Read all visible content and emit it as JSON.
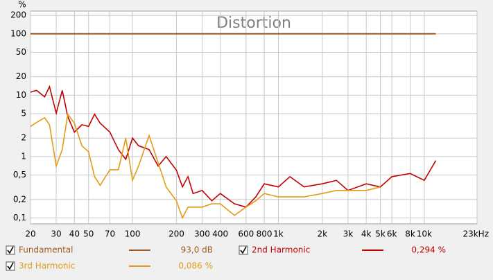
{
  "chart_data": {
    "type": "line",
    "title": "Distortion",
    "y_label": "%",
    "log_x": true,
    "log_y": true,
    "grid": true,
    "xlim": [
      20,
      23000
    ],
    "ylim": [
      0.08,
      235
    ],
    "xticks": [
      20,
      30,
      40,
      50,
      70,
      100,
      200,
      300,
      400,
      600,
      800,
      {
        "value": 1000,
        "label": "1k"
      },
      {
        "value": 2000,
        "label": "2k"
      },
      {
        "value": 3000,
        "label": "3k"
      },
      {
        "value": 4000,
        "label": "4k"
      },
      {
        "value": 5000,
        "label": "5k"
      },
      {
        "value": 6000,
        "label": "6k"
      },
      {
        "value": 8000,
        "label": "8k"
      },
      {
        "value": 10000,
        "label": "10k"
      },
      {
        "value": 23000,
        "label": "23kHz"
      }
    ],
    "yticks": [
      {
        "value": 0.1,
        "label": "0,1"
      },
      {
        "value": 0.2,
        "label": "0,2"
      },
      {
        "value": 0.5,
        "label": "0,5"
      },
      1,
      2,
      5,
      10,
      20,
      50,
      100,
      200
    ],
    "x": [
      20,
      22,
      25,
      27,
      30,
      33,
      36,
      40,
      45,
      50,
      55,
      60,
      70,
      80,
      90,
      100,
      110,
      130,
      150,
      170,
      200,
      220,
      240,
      260,
      300,
      350,
      400,
      500,
      600,
      700,
      800,
      1000,
      1200,
      1500,
      2000,
      2500,
      3000,
      4000,
      5000,
      6000,
      8000,
      10000,
      12000
    ],
    "series": [
      {
        "name": "Fundamental",
        "color": "#9c5a1e",
        "readout": "93,0 dB",
        "values": [
          100,
          100,
          100,
          100,
          100,
          100,
          100,
          100,
          100,
          100,
          100,
          100,
          100,
          100,
          100,
          100,
          100,
          100,
          100,
          100,
          100,
          100,
          100,
          100,
          100,
          100,
          100,
          100,
          100,
          100,
          100,
          100,
          100,
          100,
          100,
          100,
          100,
          100,
          100,
          100,
          100,
          100,
          100
        ]
      },
      {
        "name": "2nd Harmonic",
        "color": "#c00000",
        "readout": "0,294 %",
        "values": [
          11.2,
          12,
          9.4,
          13.8,
          5.1,
          12,
          4.5,
          2.5,
          3.3,
          3.1,
          4.9,
          3.5,
          2.5,
          1.3,
          0.9,
          2,
          1.5,
          1.3,
          0.7,
          1.0,
          0.6,
          0.32,
          0.47,
          0.25,
          0.28,
          0.19,
          0.25,
          0.17,
          0.15,
          0.22,
          0.36,
          0.32,
          0.47,
          0.32,
          0.36,
          0.41,
          0.28,
          0.36,
          0.32,
          0.47,
          0.53,
          0.41,
          0.86
        ]
      },
      {
        "name": "3rd Harmonic",
        "color": "#e39a14",
        "readout": "0,086 %",
        "values": [
          3.1,
          3.6,
          4.3,
          3.3,
          0.7,
          1.3,
          4.9,
          3.5,
          1.5,
          1.2,
          0.47,
          0.34,
          0.61,
          0.61,
          2,
          0.41,
          0.7,
          2.2,
          0.79,
          0.32,
          0.19,
          0.1,
          0.15,
          0.15,
          0.15,
          0.17,
          0.17,
          0.11,
          0.15,
          0.19,
          0.25,
          0.22,
          0.22,
          0.22,
          0.25,
          0.28,
          0.28,
          0.28,
          0.32,
          null,
          null,
          null,
          null
        ]
      }
    ]
  }
}
